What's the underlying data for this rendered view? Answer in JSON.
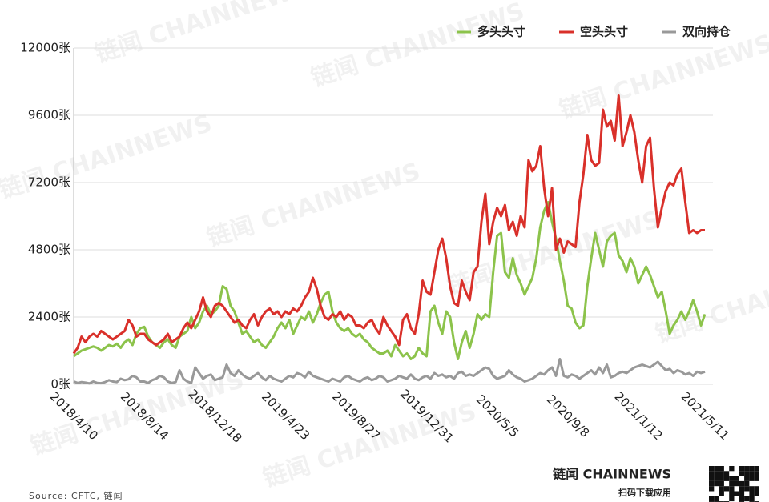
{
  "chart_data": {
    "type": "line",
    "watermark": "链闻 CHAINNEWS",
    "source": "Source: CFTC, 链闻",
    "brand": "链闻 CHAINNEWS",
    "brand_sub": "扫码下载应用",
    "legend": "top-right",
    "grid": true,
    "ylim": [
      0,
      12000
    ],
    "yticks": [
      {
        "value": 0,
        "label": "0张"
      },
      {
        "value": 2400,
        "label": "2400张"
      },
      {
        "value": 4800,
        "label": "4800张"
      },
      {
        "value": 7200,
        "label": "7200张"
      },
      {
        "value": 9600,
        "label": "9600张"
      },
      {
        "value": 12000,
        "label": "12000张"
      }
    ],
    "categories": [
      "2018/4/10",
      null,
      null,
      null,
      null,
      null,
      null,
      null,
      null,
      null,
      null,
      null,
      null,
      null,
      null,
      null,
      null,
      null,
      "2018/8/14",
      null,
      null,
      null,
      null,
      null,
      null,
      null,
      null,
      null,
      null,
      null,
      null,
      null,
      null,
      null,
      null,
      null,
      "2018/12/18",
      null,
      null,
      null,
      null,
      null,
      null,
      null,
      null,
      null,
      null,
      null,
      null,
      null,
      null,
      null,
      null,
      null,
      "2019/4/23",
      null,
      null,
      null,
      null,
      null,
      null,
      null,
      null,
      null,
      null,
      null,
      null,
      null,
      null,
      null,
      null,
      null,
      "2019/8/27",
      null,
      null,
      null,
      null,
      null,
      null,
      null,
      null,
      null,
      null,
      null,
      null,
      null,
      null,
      null,
      null,
      null,
      "2019/12/31",
      null,
      null,
      null,
      null,
      null,
      null,
      null,
      null,
      null,
      null,
      null,
      null,
      null,
      null,
      null,
      null,
      null,
      "2020/5/5",
      null,
      null,
      null,
      null,
      null,
      null,
      null,
      null,
      null,
      null,
      null,
      null,
      null,
      null,
      null,
      null,
      null,
      "2020/9/8",
      null,
      null,
      null,
      null,
      null,
      null,
      null,
      null,
      null,
      null,
      null,
      null,
      null,
      null,
      null,
      null,
      null,
      "2021/1/12",
      null,
      null,
      null,
      null,
      null,
      null,
      null,
      null,
      null,
      null,
      null,
      null,
      null,
      null,
      null,
      null,
      "2021/5/11"
    ],
    "series": [
      {
        "name": "多头头寸",
        "color": "#8cc34b",
        "values": [
          1000,
          1100,
          1200,
          1250,
          1300,
          1350,
          1300,
          1200,
          1300,
          1400,
          1350,
          1450,
          1300,
          1500,
          1600,
          1400,
          1800,
          2000,
          2050,
          1700,
          1500,
          1400,
          1300,
          1500,
          1600,
          1400,
          1300,
          1700,
          1800,
          1900,
          2400,
          2000,
          2200,
          2600,
          2800,
          2500,
          2600,
          2800,
          3500,
          3400,
          2800,
          2600,
          2200,
          1800,
          1900,
          1700,
          1500,
          1600,
          1400,
          1300,
          1500,
          1700,
          2000,
          2200,
          2000,
          2300,
          1800,
          2100,
          2400,
          2300,
          2600,
          2200,
          2500,
          2900,
          3200,
          3300,
          2600,
          2200,
          2000,
          1900,
          2000,
          1800,
          1700,
          1800,
          1600,
          1500,
          1300,
          1200,
          1100,
          1100,
          1200,
          1000,
          1400,
          1200,
          1000,
          1100,
          900,
          1000,
          1300,
          1100,
          1000,
          2600,
          2800,
          2200,
          1800,
          2600,
          2400,
          1500,
          900,
          1500,
          1900,
          1300,
          1800,
          2500,
          2300,
          2500,
          2400,
          4000,
          5300,
          5400,
          4000,
          3800,
          4500,
          3900,
          3600,
          3200,
          3500,
          3800,
          4500,
          5600,
          6200,
          6500,
          5800,
          5200,
          4400,
          3700,
          2800,
          2700,
          2200,
          2000,
          2100,
          3500,
          4500,
          5400,
          4800,
          4200,
          5100,
          5300,
          5400,
          4600,
          4400,
          4000,
          4500,
          4200,
          3600,
          3900,
          4200,
          3900,
          3500,
          3100,
          3300,
          2600,
          1800,
          2100,
          2300,
          2600,
          2300,
          2600,
          3000,
          2600,
          2100,
          2500
        ]
      },
      {
        "name": "空头头寸",
        "color": "#d9302a",
        "values": [
          1100,
          1300,
          1700,
          1500,
          1700,
          1800,
          1700,
          1900,
          1800,
          1700,
          1600,
          1700,
          1800,
          1900,
          2300,
          2100,
          1700,
          1800,
          1800,
          1600,
          1500,
          1400,
          1500,
          1600,
          1800,
          1500,
          1600,
          1700,
          2000,
          2200,
          2000,
          2300,
          2600,
          3100,
          2600,
          2400,
          2800,
          2900,
          2800,
          2600,
          2400,
          2200,
          2300,
          2100,
          2000,
          2300,
          2500,
          2100,
          2400,
          2600,
          2700,
          2500,
          2600,
          2400,
          2600,
          2500,
          2700,
          2600,
          2800,
          3100,
          3300,
          3800,
          3400,
          2800,
          2400,
          2300,
          2500,
          2400,
          2600,
          2300,
          2500,
          2400,
          2100,
          2100,
          2000,
          2200,
          2300,
          2000,
          1800,
          2400,
          2100,
          1900,
          1700,
          1400,
          2300,
          2500,
          2000,
          1800,
          2500,
          3700,
          3300,
          3200,
          4000,
          4800,
          5200,
          4500,
          3500,
          2900,
          2800,
          3700,
          3300,
          3000,
          4000,
          4200,
          5800,
          6800,
          5000,
          5800,
          6300,
          6000,
          6400,
          5500,
          5800,
          5300,
          6000,
          5600,
          8000,
          7600,
          7800,
          8500,
          7000,
          6000,
          7000,
          4800,
          5200,
          4700,
          5100,
          5000,
          4900,
          6500,
          7500,
          8900,
          8000,
          7800,
          7900,
          9800,
          9200,
          9400,
          8700,
          10300,
          8500,
          9000,
          9600,
          9000,
          8000,
          7200,
          8500,
          8800,
          7000,
          5600,
          6300,
          6900,
          7200,
          7100,
          7500,
          7700,
          6500,
          5400,
          5500,
          5400,
          5500,
          5500
        ]
      },
      {
        "name": "双向持仓",
        "color": "#999999",
        "values": [
          100,
          50,
          80,
          60,
          30,
          100,
          50,
          40,
          80,
          150,
          100,
          80,
          200,
          150,
          180,
          300,
          250,
          100,
          100,
          50,
          150,
          200,
          300,
          250,
          100,
          50,
          80,
          500,
          200,
          100,
          50,
          600,
          400,
          200,
          300,
          350,
          150,
          200,
          250,
          700,
          400,
          300,
          500,
          350,
          250,
          200,
          300,
          400,
          250,
          150,
          300,
          200,
          150,
          100,
          200,
          300,
          250,
          400,
          350,
          250,
          450,
          300,
          250,
          200,
          150,
          100,
          200,
          150,
          100,
          250,
          300,
          200,
          150,
          100,
          200,
          250,
          150,
          200,
          300,
          250,
          100,
          150,
          200,
          300,
          250,
          200,
          350,
          200,
          150,
          250,
          300,
          200,
          400,
          300,
          350,
          250,
          300,
          200,
          400,
          450,
          300,
          350,
          300,
          400,
          500,
          600,
          550,
          300,
          200,
          250,
          300,
          500,
          350,
          250,
          200,
          100,
          150,
          200,
          300,
          400,
          350,
          500,
          600,
          300,
          900,
          300,
          250,
          350,
          300,
          200,
          300,
          400,
          500,
          350,
          600,
          400,
          700,
          250,
          300,
          400,
          450,
          400,
          500,
          600,
          650,
          700,
          650,
          600,
          700,
          800,
          650,
          500,
          550,
          400,
          500,
          450,
          350,
          400,
          300,
          450,
          400,
          450
        ]
      }
    ]
  }
}
